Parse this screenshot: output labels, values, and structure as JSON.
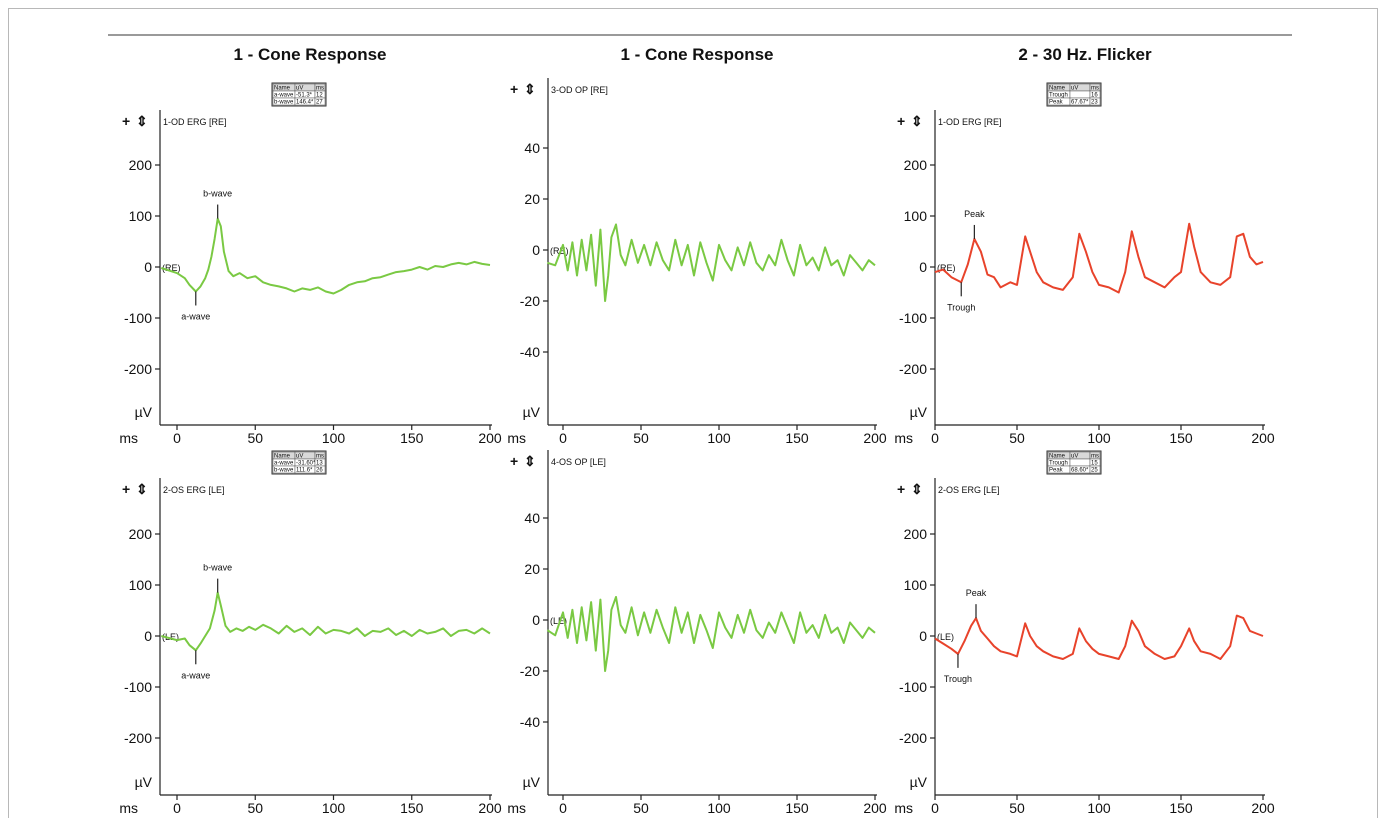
{
  "column_titles": [
    "1 - Cone Response",
    "1 - Cone Response",
    "2 - 30 Hz. Flicker"
  ],
  "colors": {
    "erg_trace": "#7ac943",
    "flicker_trace": "#e8432b",
    "axis": "#222222"
  },
  "panel_icons": [
    "plus-icon",
    "sync-icon"
  ],
  "chart_data": [
    {
      "type": "line",
      "title": "1 - Cone Response",
      "channel": "1-OD ERG [RE]",
      "eye_label": "(RE)",
      "xlabel": "ms",
      "ylabel": "µV",
      "xlim": [
        -10,
        200
      ],
      "ylim": [
        -280,
        280
      ],
      "xticks": [
        0,
        50,
        100,
        150,
        200
      ],
      "yticks": [
        200,
        100,
        0,
        -100,
        -200
      ],
      "series_color": "#7ac943",
      "series": [
        {
          "x": [
            -10,
            0,
            5,
            8,
            12,
            15,
            18,
            20,
            22,
            24,
            26,
            28,
            30,
            33,
            36,
            40,
            45,
            50,
            55,
            60,
            65,
            70,
            75,
            80,
            85,
            90,
            95,
            100,
            105,
            110,
            115,
            120,
            125,
            130,
            135,
            140,
            145,
            150,
            155,
            160,
            165,
            170,
            175,
            180,
            185,
            190,
            195,
            200
          ],
          "y": [
            -2,
            -12,
            -22,
            -35,
            -48,
            -38,
            -22,
            -5,
            20,
            55,
            95,
            80,
            30,
            -8,
            -18,
            -12,
            -22,
            -18,
            -30,
            -35,
            -38,
            -42,
            -48,
            -42,
            -45,
            -40,
            -48,
            -52,
            -45,
            -35,
            -30,
            -28,
            -22,
            -20,
            -15,
            -10,
            -8,
            -5,
            0,
            -5,
            2,
            0,
            5,
            8,
            5,
            10,
            6,
            4
          ]
        }
      ],
      "markers": [
        {
          "label": "a-wave",
          "x": 12,
          "y": -48
        },
        {
          "label": "b-wave",
          "x": 26,
          "y": 95
        }
      ],
      "result_table": {
        "headers": [
          "Name",
          "uV",
          "ms"
        ],
        "rows": [
          [
            "a-wave",
            "-51.3*",
            "12"
          ],
          [
            "b-wave",
            "146.4*",
            "27"
          ]
        ]
      }
    },
    {
      "type": "line",
      "title": "1 - Cone Response",
      "channel": "3-OD OP [RE]",
      "eye_label": "(RE)",
      "xlabel": "ms",
      "ylabel": "µV",
      "xlim": [
        -10,
        200
      ],
      "ylim": [
        -56,
        60
      ],
      "xticks": [
        0,
        50,
        100,
        150,
        200
      ],
      "yticks": [
        40,
        20,
        0,
        -20,
        -40
      ],
      "series_color": "#7ac943",
      "series": [
        {
          "x": [
            -10,
            -5,
            0,
            3,
            6,
            9,
            12,
            15,
            18,
            21,
            24,
            27,
            29,
            31,
            34,
            37,
            40,
            44,
            48,
            52,
            56,
            60,
            64,
            68,
            72,
            76,
            80,
            84,
            88,
            92,
            96,
            100,
            104,
            108,
            112,
            116,
            120,
            124,
            128,
            132,
            136,
            140,
            144,
            148,
            152,
            156,
            160,
            164,
            168,
            172,
            176,
            180,
            184,
            188,
            192,
            196,
            200
          ],
          "y": [
            -5,
            -6,
            2,
            -8,
            3,
            -10,
            4,
            -8,
            6,
            -14,
            8,
            -20,
            -10,
            5,
            10,
            -2,
            -6,
            4,
            -5,
            2,
            -6,
            3,
            -4,
            -8,
            4,
            -6,
            2,
            -10,
            3,
            -5,
            -12,
            2,
            -4,
            -8,
            1,
            -6,
            3,
            -5,
            -8,
            -2,
            -6,
            4,
            -4,
            -10,
            2,
            -6,
            -3,
            -8,
            1,
            -6,
            -4,
            -10,
            -2,
            -5,
            -8,
            -4,
            -6
          ]
        }
      ]
    },
    {
      "type": "line",
      "title": "2 - 30 Hz. Flicker",
      "channel": "1-OD ERG [RE]",
      "eye_label": "(RE)",
      "xlabel": "ms",
      "ylabel": "µV",
      "xlim": [
        0,
        200
      ],
      "ylim": [
        -280,
        280
      ],
      "xticks": [
        0,
        50,
        100,
        150,
        200
      ],
      "yticks": [
        200,
        100,
        0,
        -100,
        -200
      ],
      "series_color": "#e8432b",
      "series": [
        {
          "x": [
            0,
            5,
            10,
            16,
            20,
            24,
            28,
            32,
            36,
            40,
            46,
            50,
            55,
            58,
            62,
            66,
            72,
            78,
            84,
            88,
            92,
            96,
            100,
            106,
            112,
            116,
            120,
            124,
            128,
            134,
            140,
            146,
            150,
            155,
            158,
            162,
            168,
            174,
            180,
            184,
            188,
            192,
            196,
            200
          ],
          "y": [
            -10,
            -5,
            -20,
            -30,
            5,
            55,
            30,
            -15,
            -20,
            -40,
            -30,
            -35,
            60,
            30,
            -10,
            -30,
            -40,
            -45,
            -20,
            65,
            30,
            -10,
            -35,
            -40,
            -50,
            -10,
            70,
            20,
            -20,
            -30,
            -40,
            -20,
            -10,
            85,
            40,
            -10,
            -30,
            -35,
            -20,
            60,
            65,
            20,
            5,
            10
          ]
        }
      ],
      "markers": [
        {
          "label": "Peak",
          "x": 24,
          "y": 55
        },
        {
          "label": "Trough",
          "x": 16,
          "y": -30
        }
      ],
      "result_table": {
        "headers": [
          "Name",
          "uV",
          "ms"
        ],
        "rows": [
          [
            "Trough",
            "",
            "16"
          ],
          [
            "Peak",
            "67.67*",
            "23"
          ]
        ]
      }
    },
    {
      "type": "line",
      "title": "1 - Cone Response",
      "channel": "2-OS ERG [LE]",
      "eye_label": "(LE)",
      "xlabel": "ms",
      "ylabel": "µV",
      "xlim": [
        -10,
        200
      ],
      "ylim": [
        -280,
        280
      ],
      "xticks": [
        0,
        50,
        100,
        150,
        200
      ],
      "yticks": [
        200,
        100,
        0,
        -100,
        -200
      ],
      "series_color": "#7ac943",
      "series": [
        {
          "x": [
            -10,
            0,
            5,
            8,
            12,
            15,
            18,
            21,
            24,
            26,
            28,
            31,
            34,
            38,
            42,
            46,
            50,
            55,
            60,
            65,
            70,
            75,
            80,
            85,
            90,
            95,
            100,
            105,
            110,
            115,
            120,
            125,
            130,
            135,
            140,
            145,
            150,
            155,
            160,
            165,
            170,
            175,
            180,
            185,
            190,
            195,
            200
          ],
          "y": [
            0,
            -8,
            -5,
            -18,
            -28,
            -15,
            0,
            15,
            50,
            85,
            60,
            20,
            8,
            15,
            10,
            18,
            12,
            22,
            15,
            5,
            20,
            8,
            15,
            2,
            18,
            5,
            12,
            10,
            5,
            15,
            0,
            10,
            8,
            15,
            2,
            10,
            0,
            12,
            5,
            8,
            15,
            0,
            10,
            12,
            5,
            15,
            5
          ]
        }
      ],
      "markers": [
        {
          "label": "a-wave",
          "x": 12,
          "y": -28
        },
        {
          "label": "b-wave",
          "x": 26,
          "y": 85
        }
      ],
      "result_table": {
        "headers": [
          "Name",
          "uV",
          "ms"
        ],
        "rows": [
          [
            "a-wave",
            "-31.60*",
            "13"
          ],
          [
            "b-wave",
            "111.6*",
            "26"
          ]
        ]
      }
    },
    {
      "type": "line",
      "title": "1 - Cone Response",
      "channel": "4-OS OP [LE]",
      "eye_label": "(LE)",
      "xlabel": "ms",
      "ylabel": "µV",
      "xlim": [
        -10,
        200
      ],
      "ylim": [
        -56,
        60
      ],
      "xticks": [
        0,
        50,
        100,
        150,
        200
      ],
      "yticks": [
        40,
        20,
        0,
        -20,
        -40
      ],
      "series_color": "#7ac943",
      "series": [
        {
          "x": [
            -10,
            -5,
            0,
            3,
            6,
            9,
            12,
            15,
            18,
            21,
            24,
            27,
            29,
            31,
            34,
            37,
            40,
            44,
            48,
            52,
            56,
            60,
            64,
            68,
            72,
            76,
            80,
            84,
            88,
            92,
            96,
            100,
            104,
            108,
            112,
            116,
            120,
            124,
            128,
            132,
            136,
            140,
            144,
            148,
            152,
            156,
            160,
            164,
            168,
            172,
            176,
            180,
            184,
            188,
            192,
            196,
            200
          ],
          "y": [
            -4,
            -6,
            3,
            -7,
            4,
            -9,
            5,
            -8,
            7,
            -12,
            8,
            -20,
            -12,
            4,
            9,
            -2,
            -5,
            5,
            -6,
            3,
            -5,
            4,
            -3,
            -9,
            5,
            -5,
            3,
            -9,
            2,
            -4,
            -11,
            3,
            -3,
            -7,
            2,
            -5,
            4,
            -4,
            -7,
            -1,
            -5,
            3,
            -3,
            -9,
            3,
            -5,
            -2,
            -7,
            2,
            -5,
            -3,
            -9,
            -1,
            -4,
            -7,
            -3,
            -5
          ]
        }
      ]
    },
    {
      "type": "line",
      "title": "2 - 30 Hz. Flicker",
      "channel": "2-OS ERG [LE]",
      "eye_label": "(LE)",
      "xlabel": "ms",
      "ylabel": "µV",
      "xlim": [
        0,
        200
      ],
      "ylim": [
        -280,
        280
      ],
      "xticks": [
        0,
        50,
        100,
        150,
        200
      ],
      "yticks": [
        200,
        100,
        0,
        -100,
        -200
      ],
      "series_color": "#e8432b",
      "series": [
        {
          "x": [
            0,
            5,
            10,
            14,
            18,
            22,
            25,
            28,
            32,
            36,
            40,
            46,
            50,
            55,
            58,
            62,
            66,
            72,
            78,
            84,
            88,
            92,
            96,
            100,
            106,
            112,
            116,
            120,
            124,
            128,
            134,
            140,
            146,
            150,
            155,
            158,
            162,
            168,
            174,
            180,
            184,
            188,
            192,
            196,
            200
          ],
          "y": [
            -5,
            -15,
            -25,
            -35,
            -10,
            20,
            35,
            10,
            -5,
            -20,
            -30,
            -35,
            -40,
            25,
            0,
            -20,
            -30,
            -40,
            -45,
            -35,
            15,
            -10,
            -25,
            -35,
            -40,
            -45,
            -20,
            30,
            10,
            -20,
            -35,
            -45,
            -40,
            -20,
            15,
            -10,
            -30,
            -35,
            -45,
            -20,
            40,
            35,
            10,
            5,
            0
          ]
        }
      ],
      "markers": [
        {
          "label": "Peak",
          "x": 25,
          "y": 35
        },
        {
          "label": "Trough",
          "x": 14,
          "y": -35
        }
      ],
      "result_table": {
        "headers": [
          "Name",
          "uV",
          "ms"
        ],
        "rows": [
          [
            "Trough",
            "",
            "15"
          ],
          [
            "Peak",
            "68.60*",
            "25"
          ]
        ]
      }
    }
  ]
}
